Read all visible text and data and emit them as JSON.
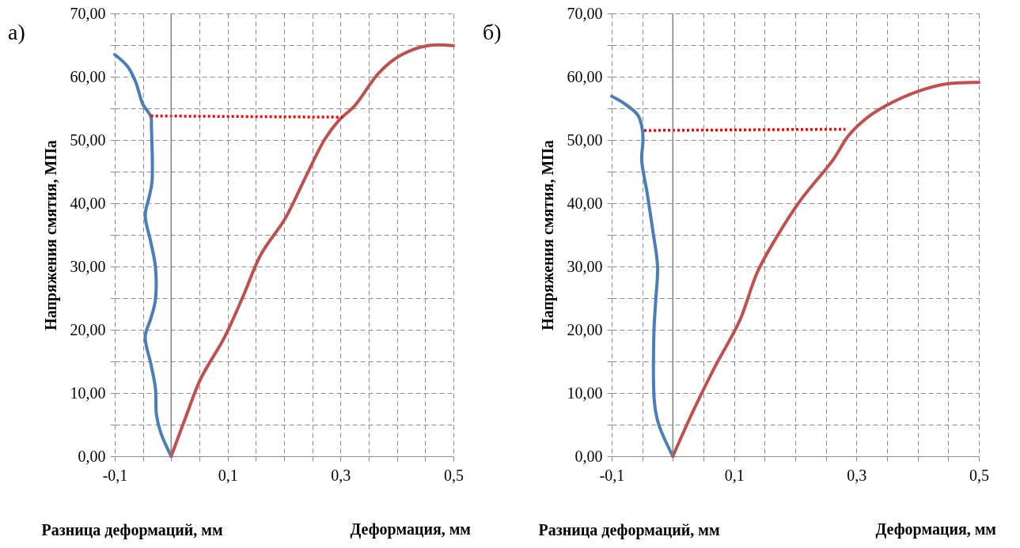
{
  "chart_data": [
    {
      "type": "line",
      "title": "а)",
      "xlabel": "Разница деформаций, мм",
      "ylabel": "Напряжения смятия, МПа",
      "annotations": [
        "Деформация, мм"
      ],
      "xlim": [
        -0.1,
        0.5
      ],
      "ylim": [
        0,
        70
      ],
      "xticks": [
        {
          "value": -0.1,
          "label": "-0,1"
        },
        {
          "value": -0.05,
          "label": null
        },
        {
          "value": 0,
          "label": null
        },
        {
          "value": 0.05,
          "label": null
        },
        {
          "value": 0.1,
          "label": "0,1"
        },
        {
          "value": 0.15,
          "label": null
        },
        {
          "value": 0.2,
          "label": null
        },
        {
          "value": 0.25,
          "label": null
        },
        {
          "value": 0.3,
          "label": "0,3"
        },
        {
          "value": 0.35,
          "label": null
        },
        {
          "value": 0.4,
          "label": null
        },
        {
          "value": 0.45,
          "label": null
        },
        {
          "value": 0.5,
          "label": "0,5"
        }
      ],
      "yticks": [
        {
          "value": 0,
          "label": "0,00"
        },
        {
          "value": 5,
          "label": null
        },
        {
          "value": 10,
          "label": "10,00"
        },
        {
          "value": 15,
          "label": null
        },
        {
          "value": 20,
          "label": "20,00"
        },
        {
          "value": 25,
          "label": null
        },
        {
          "value": 30,
          "label": "30,00"
        },
        {
          "value": 35,
          "label": null
        },
        {
          "value": 40,
          "label": "40,00"
        },
        {
          "value": 45,
          "label": null
        },
        {
          "value": 50,
          "label": "50,00"
        },
        {
          "value": 55,
          "label": null
        },
        {
          "value": 60,
          "label": "60,00"
        },
        {
          "value": 65,
          "label": null
        },
        {
          "value": 70,
          "label": "70,00"
        }
      ],
      "grid": true,
      "ref_lines": [
        {
          "axis": "x",
          "value": 0,
          "color": "#808080"
        }
      ],
      "series": [
        {
          "color": "#4a7ebb",
          "line_style": "solid",
          "x": [
            -0.1,
            -0.077,
            -0.063,
            -0.05,
            -0.036,
            -0.035,
            -0.034,
            -0.039,
            -0.046,
            -0.036,
            -0.028,
            -0.028,
            -0.036,
            -0.046,
            -0.036,
            -0.028,
            -0.026,
            -0.018,
            0
          ],
          "values": [
            63.5,
            61.6,
            59.2,
            55.6,
            53.7,
            52.0,
            43.4,
            41.0,
            38.1,
            33.8,
            30.0,
            24.7,
            21.8,
            18.9,
            14.6,
            10.8,
            6.5,
            3.6,
            0
          ]
        },
        {
          "color": "#c0504d",
          "line_style": "solid",
          "x": [
            0,
            0.025,
            0.052,
            0.095,
            0.127,
            0.159,
            0.202,
            0.239,
            0.272,
            0.298,
            0.325,
            0.368,
            0.405,
            0.454,
            0.5
          ],
          "values": [
            0,
            6.0,
            12.2,
            18.9,
            25.2,
            31.9,
            37.6,
            44.3,
            50.1,
            53.2,
            55.4,
            60.6,
            63.3,
            64.9,
            64.9
          ]
        },
        {
          "color": "#ff0000",
          "line_style": "dotted",
          "x": [
            -0.036,
            0.304
          ],
          "values": [
            53.8,
            53.6
          ]
        }
      ]
    },
    {
      "type": "line",
      "title": "б)",
      "xlabel": "Разница деформаций, мм",
      "ylabel": "Напряжения смятия, МПа",
      "annotations": [
        "Деформация, мм"
      ],
      "xlim": [
        -0.1,
        0.5
      ],
      "ylim": [
        0,
        70
      ],
      "xticks": [
        {
          "value": -0.1,
          "label": "-0,1"
        },
        {
          "value": -0.05,
          "label": null
        },
        {
          "value": 0,
          "label": null
        },
        {
          "value": 0.05,
          "label": null
        },
        {
          "value": 0.1,
          "label": "0,1"
        },
        {
          "value": 0.15,
          "label": null
        },
        {
          "value": 0.2,
          "label": null
        },
        {
          "value": 0.25,
          "label": null
        },
        {
          "value": 0.3,
          "label": "0,3"
        },
        {
          "value": 0.35,
          "label": null
        },
        {
          "value": 0.4,
          "label": null
        },
        {
          "value": 0.45,
          "label": null
        },
        {
          "value": 0.5,
          "label": "0,5"
        }
      ],
      "yticks": [
        {
          "value": 0,
          "label": "0,00"
        },
        {
          "value": 5,
          "label": null
        },
        {
          "value": 10,
          "label": "10,00"
        },
        {
          "value": 15,
          "label": null
        },
        {
          "value": 20,
          "label": "20,00"
        },
        {
          "value": 25,
          "label": null
        },
        {
          "value": 30,
          "label": "30,00"
        },
        {
          "value": 35,
          "label": null
        },
        {
          "value": 40,
          "label": "40,00"
        },
        {
          "value": 45,
          "label": null
        },
        {
          "value": 50,
          "label": "50,00"
        },
        {
          "value": 55,
          "label": null
        },
        {
          "value": 60,
          "label": "60,00"
        },
        {
          "value": 65,
          "label": null
        },
        {
          "value": 70,
          "label": "70,00"
        }
      ],
      "grid": true,
      "ref_lines": [
        {
          "axis": "x",
          "value": 0,
          "color": "#808080"
        }
      ],
      "series": [
        {
          "color": "#4a7ebb",
          "line_style": "solid",
          "x": [
            -0.1,
            -0.08,
            -0.057,
            -0.05,
            -0.049,
            -0.051,
            -0.042,
            -0.033,
            -0.025,
            -0.028,
            -0.031,
            -0.03,
            -0.023,
            0
          ],
          "values": [
            56.9,
            55.8,
            53.9,
            51.7,
            49.7,
            46.9,
            41.6,
            35.8,
            30.0,
            24.7,
            19.5,
            8.4,
            5.0,
            0
          ]
        },
        {
          "color": "#c0504d",
          "line_style": "solid",
          "x": [
            0,
            0.03,
            0.069,
            0.109,
            0.138,
            0.168,
            0.208,
            0.262,
            0.287,
            0.312,
            0.346,
            0.401,
            0.45,
            0.5
          ],
          "values": [
            0,
            6.5,
            14.2,
            21.4,
            29.1,
            34.4,
            40.4,
            46.9,
            50.7,
            53.1,
            55.3,
            57.7,
            58.9,
            59.1
          ]
        },
        {
          "color": "#ff0000",
          "line_style": "dotted",
          "x": [
            -0.047,
            0.282
          ],
          "values": [
            51.5,
            51.7
          ]
        }
      ]
    }
  ]
}
